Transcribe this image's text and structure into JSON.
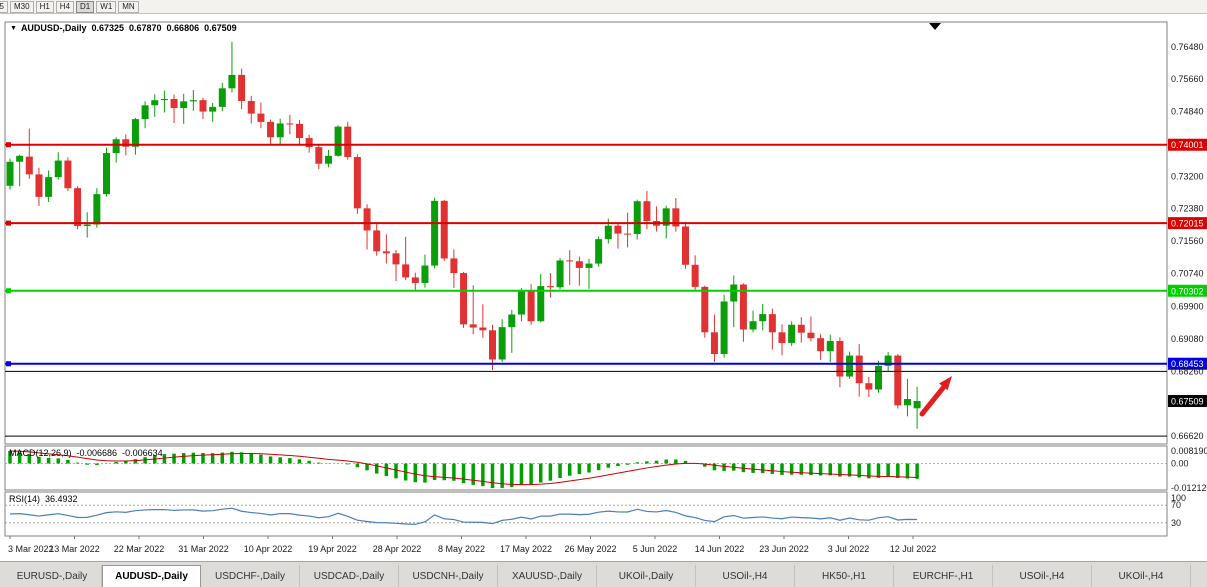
{
  "toolbar": {
    "periods": [
      "5",
      "M30",
      "H1",
      "H4",
      "D1",
      "W1",
      "MN"
    ],
    "active": "D1"
  },
  "header": {
    "dropdown_icon": "▼",
    "symbol": "AUDUSD-,Daily",
    "open": "0.67325",
    "high": "0.67870",
    "low": "0.66806",
    "close": "0.67509"
  },
  "colors": {
    "up": "#0b9e0b",
    "down": "#e03232",
    "macd_histogram": "#00a000",
    "macd_signal": "#cc0000",
    "rsi_line": "#4a7ebb",
    "arrow": "#e02020",
    "hline_red": "#dd0000",
    "hline_green": "#00d000",
    "hline_blue": "#0000e0",
    "current_price_box": "#000000"
  },
  "chart_data": {
    "type": "candlestick",
    "symbol": "AUDUSD",
    "timeframe": "Daily",
    "ylim": [
      0.6642,
      0.7711
    ],
    "x_labels": [
      "3 Mar 2022",
      "13 Mar 2022",
      "22 Mar 2022",
      "31 Mar 2022",
      "10 Apr 2022",
      "19 Apr 2022",
      "28 Apr 2022",
      "8 May 2022",
      "17 May 2022",
      "26 May 2022",
      "5 Jun 2022",
      "14 Jun 2022",
      "23 Jun 2022",
      "3 Jul 2022",
      "12 Jul 2022"
    ],
    "y_axis_labels": [
      "0.76480",
      "0.75660",
      "0.74840",
      "0.73200",
      "0.72380",
      "0.71560",
      "0.70740",
      "0.69900",
      "0.69080",
      "0.68260",
      "0.66620"
    ],
    "current_price": 0.67509,
    "current_price_label": "0.67509",
    "hlines": [
      {
        "price": 0.74001,
        "label": "0.74001",
        "color": "#dd0000",
        "width": 2
      },
      {
        "price": 0.72015,
        "label": "0.72015",
        "color": "#dd0000",
        "width": 2
      },
      {
        "price": 0.70302,
        "label": "0.70302",
        "color": "#00d000",
        "width": 2
      },
      {
        "price": 0.68453,
        "label": "0.68453",
        "color": "#0000e0",
        "width": 2
      },
      {
        "price": 0.6826,
        "label": null,
        "color": "#000000",
        "width": 1
      },
      {
        "price": 0.6662,
        "label": null,
        "color": "#000000",
        "width": 1
      }
    ],
    "annotations": [
      {
        "type": "arrow-up",
        "color": "#e02020",
        "near": "last-candle"
      }
    ],
    "indicators": {
      "macd": {
        "label": "MACD(12,26,9)",
        "main": "-0.006686",
        "signal": "-0.006634",
        "axis": [
          "0.008190",
          "0.00",
          "-0.01212"
        ]
      },
      "rsi": {
        "label": "RSI(14)",
        "value": "36.4932",
        "axis": [
          "100",
          "70",
          "30"
        ],
        "levels": [
          70,
          30
        ]
      }
    },
    "candles": [
      [
        0.7296,
        0.7365,
        0.7286,
        0.7357
      ],
      [
        0.7357,
        0.7375,
        0.7295,
        0.7372
      ],
      [
        0.737,
        0.7441,
        0.7314,
        0.7325
      ],
      [
        0.7325,
        0.7342,
        0.7245,
        0.7268
      ],
      [
        0.7268,
        0.7335,
        0.7255,
        0.7318
      ],
      [
        0.7318,
        0.7381,
        0.7312,
        0.736
      ],
      [
        0.736,
        0.7368,
        0.7283,
        0.729
      ],
      [
        0.729,
        0.7295,
        0.7186,
        0.7194
      ],
      [
        0.7194,
        0.7229,
        0.7165,
        0.7198
      ],
      [
        0.7198,
        0.729,
        0.719,
        0.7275
      ],
      [
        0.7275,
        0.7393,
        0.7269,
        0.7379
      ],
      [
        0.7379,
        0.7419,
        0.7355,
        0.7414
      ],
      [
        0.7414,
        0.7426,
        0.7373,
        0.7395
      ],
      [
        0.7395,
        0.7468,
        0.7375,
        0.7465
      ],
      [
        0.7465,
        0.751,
        0.7442,
        0.75
      ],
      [
        0.75,
        0.7528,
        0.7471,
        0.7513
      ],
      [
        0.7513,
        0.7537,
        0.7482,
        0.7516
      ],
      [
        0.7516,
        0.7527,
        0.7455,
        0.7493
      ],
      [
        0.7493,
        0.7529,
        0.7453,
        0.751
      ],
      [
        0.751,
        0.7539,
        0.7486,
        0.7513
      ],
      [
        0.7513,
        0.7519,
        0.7465,
        0.7484
      ],
      [
        0.7484,
        0.7506,
        0.7458,
        0.7496
      ],
      [
        0.7496,
        0.7557,
        0.7485,
        0.7543
      ],
      [
        0.7543,
        0.7661,
        0.7532,
        0.7577
      ],
      [
        0.7577,
        0.7593,
        0.749,
        0.7511
      ],
      [
        0.7511,
        0.7524,
        0.7454,
        0.7479
      ],
      [
        0.7479,
        0.7507,
        0.7442,
        0.7458
      ],
      [
        0.7458,
        0.7464,
        0.7399,
        0.7419
      ],
      [
        0.7419,
        0.7466,
        0.74,
        0.7454
      ],
      [
        0.7454,
        0.7476,
        0.7427,
        0.7453
      ],
      [
        0.7453,
        0.7463,
        0.7398,
        0.7417
      ],
      [
        0.7417,
        0.7425,
        0.738,
        0.7394
      ],
      [
        0.7394,
        0.7401,
        0.7338,
        0.7352
      ],
      [
        0.7352,
        0.7387,
        0.7343,
        0.7372
      ],
      [
        0.7372,
        0.7449,
        0.737,
        0.7446
      ],
      [
        0.7446,
        0.7458,
        0.7362,
        0.7369
      ],
      [
        0.7369,
        0.7376,
        0.7225,
        0.7239
      ],
      [
        0.7239,
        0.7249,
        0.7135,
        0.7183
      ],
      [
        0.7183,
        0.7199,
        0.7119,
        0.713
      ],
      [
        0.713,
        0.7173,
        0.7099,
        0.7125
      ],
      [
        0.7125,
        0.7133,
        0.7055,
        0.7097
      ],
      [
        0.7097,
        0.7167,
        0.7057,
        0.7064
      ],
      [
        0.7064,
        0.7076,
        0.7029,
        0.705
      ],
      [
        0.705,
        0.7122,
        0.7038,
        0.7094
      ],
      [
        0.7094,
        0.7266,
        0.7087,
        0.7258
      ],
      [
        0.7258,
        0.726,
        0.7106,
        0.7112
      ],
      [
        0.7112,
        0.7135,
        0.7037,
        0.7075
      ],
      [
        0.7075,
        0.7078,
        0.6936,
        0.6945
      ],
      [
        0.6945,
        0.7044,
        0.692,
        0.6937
      ],
      [
        0.6937,
        0.6996,
        0.6911,
        0.693
      ],
      [
        0.693,
        0.6944,
        0.6829,
        0.6856
      ],
      [
        0.6856,
        0.6958,
        0.685,
        0.6938
      ],
      [
        0.6938,
        0.6982,
        0.6873,
        0.697
      ],
      [
        0.697,
        0.7037,
        0.6953,
        0.7029
      ],
      [
        0.7029,
        0.7047,
        0.6944,
        0.6953
      ],
      [
        0.6953,
        0.7073,
        0.695,
        0.7042
      ],
      [
        0.7042,
        0.7075,
        0.7013,
        0.7039
      ],
      [
        0.7039,
        0.7113,
        0.7034,
        0.7107
      ],
      [
        0.7107,
        0.7133,
        0.7045,
        0.7105
      ],
      [
        0.7105,
        0.7117,
        0.7043,
        0.7088
      ],
      [
        0.7088,
        0.7111,
        0.7035,
        0.7099
      ],
      [
        0.7099,
        0.7168,
        0.7091,
        0.7161
      ],
      [
        0.7161,
        0.7213,
        0.715,
        0.7195
      ],
      [
        0.7195,
        0.7203,
        0.7137,
        0.7175
      ],
      [
        0.7175,
        0.7228,
        0.714,
        0.7174
      ],
      [
        0.7174,
        0.7261,
        0.716,
        0.7257
      ],
      [
        0.7257,
        0.7283,
        0.7186,
        0.7207
      ],
      [
        0.7207,
        0.7244,
        0.718,
        0.7195
      ],
      [
        0.7195,
        0.7246,
        0.7163,
        0.7239
      ],
      [
        0.7239,
        0.7265,
        0.718,
        0.7193
      ],
      [
        0.7193,
        0.7205,
        0.7086,
        0.7096
      ],
      [
        0.7096,
        0.712,
        0.7033,
        0.704
      ],
      [
        0.704,
        0.7043,
        0.6911,
        0.6925
      ],
      [
        0.6925,
        0.697,
        0.685,
        0.687
      ],
      [
        0.687,
        0.702,
        0.6861,
        0.7003
      ],
      [
        0.7003,
        0.7069,
        0.6938,
        0.7046
      ],
      [
        0.7046,
        0.7049,
        0.6901,
        0.6932
      ],
      [
        0.6932,
        0.698,
        0.6925,
        0.6953
      ],
      [
        0.6953,
        0.6997,
        0.693,
        0.6971
      ],
      [
        0.6971,
        0.6985,
        0.6881,
        0.6925
      ],
      [
        0.6925,
        0.6945,
        0.6867,
        0.6898
      ],
      [
        0.6898,
        0.6953,
        0.689,
        0.6944
      ],
      [
        0.6944,
        0.6963,
        0.6899,
        0.6924
      ],
      [
        0.6924,
        0.6965,
        0.6902,
        0.691
      ],
      [
        0.691,
        0.6921,
        0.6855,
        0.6877
      ],
      [
        0.6877,
        0.6919,
        0.685,
        0.6903
      ],
      [
        0.6903,
        0.6912,
        0.6786,
        0.6813
      ],
      [
        0.6813,
        0.6876,
        0.6807,
        0.6866
      ],
      [
        0.6866,
        0.6895,
        0.6762,
        0.6796
      ],
      [
        0.6796,
        0.6812,
        0.6761,
        0.678
      ],
      [
        0.678,
        0.6853,
        0.6772,
        0.684
      ],
      [
        0.684,
        0.6875,
        0.6827,
        0.6866
      ],
      [
        0.6866,
        0.687,
        0.6732,
        0.674
      ],
      [
        0.674,
        0.6807,
        0.6712,
        0.6756
      ],
      [
        0.67325,
        0.6787,
        0.66806,
        0.67509
      ]
    ]
  },
  "tabs": [
    {
      "label": "EURUSD-,Daily",
      "active": false
    },
    {
      "label": "AUDUSD-,Daily",
      "active": true
    },
    {
      "label": "USDCHF-,Daily",
      "active": false
    },
    {
      "label": "USDCAD-,Daily",
      "active": false
    },
    {
      "label": "USDCNH-,Daily",
      "active": false
    },
    {
      "label": "XAUUSD-,Daily",
      "active": false
    },
    {
      "label": "UKOil-,Daily",
      "active": false
    },
    {
      "label": "USOil-,H4",
      "active": false
    },
    {
      "label": "HK50-,H1",
      "active": false
    },
    {
      "label": "EURCHF-,H1",
      "active": false
    },
    {
      "label": "USOil-,H4",
      "active": false
    },
    {
      "label": "UKOil-,H4",
      "active": false
    }
  ]
}
